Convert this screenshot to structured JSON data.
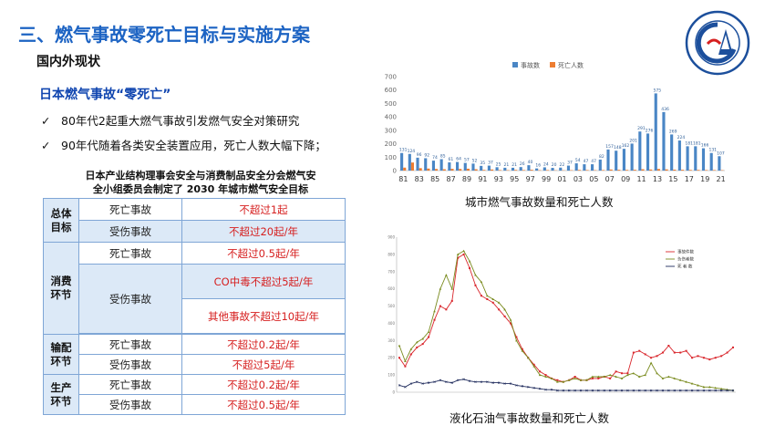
{
  "header": {
    "title": "三、燃气事故零死亡目标与实施方案",
    "subtitle": "国内外现状"
  },
  "section": {
    "heading": "日本燃气事故“零死亡”",
    "bullets": [
      "80年代2起重大燃气事故引发燃气安全对策研究",
      "90年代随着各类安全装置应用，死亡人数大幅下降；"
    ]
  },
  "table": {
    "caption_line1": "日本产业结构理事会安全与消费制品安全分会燃气安",
    "caption_line2": "全小组委员会制定了 2030 年城市燃气安全目标",
    "rows": {
      "total_cat": "总体目标",
      "consume_cat": "消费环节",
      "transport_cat": "输配环节",
      "produce_cat": "生产环节",
      "death": "死亡事故",
      "injury": "受伤事故",
      "total_death_limit": "不超过1起",
      "total_injury_limit": "不超过20起/年",
      "consume_death_limit": "不超过0.5起/年",
      "consume_co_limit": "CO中毒不超过5起/年",
      "consume_other_limit": "其他事故不超过10起/年",
      "transport_death_limit": "不超过0.2起/年",
      "transport_injury_limit": "不超过5起/年",
      "produce_death_limit": "不超过0.2起/年",
      "produce_injury_limit": "不超过0.5起/年"
    }
  },
  "logo": {
    "ring_text": "CHINA GAS ASSOCIATION",
    "top_text": "中国城市燃气协会",
    "color": "#1c4f9c"
  },
  "chart_data": [
    {
      "type": "bar",
      "caption": "城市燃气事故数量和死亡人数",
      "legend": [
        "事故数",
        "死亡人数"
      ],
      "legend_position": "top",
      "ylim": [
        0,
        700
      ],
      "yticks": [
        "0",
        "100",
        "200",
        "300",
        "400",
        "500",
        "600",
        "700"
      ],
      "xtick_labels": [
        "81",
        "83",
        "85",
        "87",
        "89",
        "91",
        "93",
        "95",
        "97",
        "99",
        "01",
        "03",
        "05",
        "07",
        "09",
        "11",
        "13",
        "15",
        "17",
        "19",
        "21"
      ],
      "categories": [
        "81",
        "82",
        "83",
        "84",
        "85",
        "86",
        "87",
        "88",
        "89",
        "90",
        "91",
        "92",
        "93",
        "94",
        "95",
        "96",
        "97",
        "98",
        "99",
        "00",
        "01",
        "02",
        "03",
        "04",
        "05",
        "06",
        "07",
        "08",
        "09",
        "10",
        "11",
        "12",
        "13",
        "14",
        "15",
        "16",
        "17",
        "18",
        "19",
        "20",
        "21"
      ],
      "colors": {
        "accidents": "#4a86c5",
        "deaths": "#ed7d31"
      },
      "series": [
        {
          "name": "事故数",
          "values": [
            131,
            124,
            96,
            92,
            74,
            85,
            61,
            64,
            57,
            52,
            35,
            37,
            25,
            21,
            21,
            26,
            40,
            16,
            24,
            20,
            22,
            37,
            54,
            47,
            47,
            82,
            157,
            148,
            162,
            201,
            291,
            276,
            575,
            436,
            269,
            224,
            181,
            181,
            166,
            131,
            107
          ]
        },
        {
          "name": "死亡人数",
          "values": [
            22,
            60,
            18,
            15,
            12,
            10,
            13,
            12,
            14,
            10,
            5,
            8,
            4,
            3,
            5,
            4,
            6,
            3,
            4,
            2,
            2,
            3,
            5,
            4,
            3,
            4,
            8,
            6,
            5,
            6,
            10,
            8,
            12,
            9,
            7,
            6,
            5,
            5,
            4,
            4,
            3
          ]
        }
      ],
      "data_labels": [
        "131",
        "124",
        "96",
        "92",
        "74",
        "85",
        "61",
        "64",
        "57",
        "52",
        "35",
        "37",
        "25",
        "21",
        "21",
        "26",
        "40",
        "16",
        "24",
        "20",
        "22",
        "37",
        "54",
        "47",
        "47",
        "82",
        "157",
        "148",
        "162",
        "201",
        "291",
        "276",
        "575",
        "436",
        "269",
        "224",
        "181",
        "181",
        "166",
        "131",
        "107"
      ]
    },
    {
      "type": "line",
      "caption": "液化石油气事故数量和死亡人数",
      "ylim": [
        0,
        900
      ],
      "yticks": [
        "0",
        "100",
        "200",
        "300",
        "400",
        "500",
        "600",
        "700",
        "800",
        "900"
      ],
      "legend_position": "top-right",
      "colors": {
        "accidents": "#d9262c",
        "injured": "#7a8b1f",
        "deaths": "#1f2b5c"
      },
      "series": [
        {
          "name": "事故件数",
          "values": [
            200,
            150,
            220,
            260,
            280,
            320,
            420,
            500,
            480,
            530,
            780,
            800,
            720,
            620,
            560,
            540,
            520,
            480,
            440,
            400,
            320,
            250,
            200,
            160,
            120,
            100,
            80,
            70,
            60,
            70,
            90,
            70,
            70,
            80,
            80,
            90,
            80,
            120,
            110,
            110,
            230,
            240,
            220,
            200,
            210,
            230,
            270,
            230,
            230,
            240,
            200,
            210,
            200,
            190,
            200,
            210,
            230,
            260
          ]
        },
        {
          "name": "负伤者数",
          "values": [
            270,
            180,
            250,
            290,
            310,
            350,
            470,
            600,
            680,
            600,
            800,
            820,
            760,
            680,
            640,
            560,
            540,
            520,
            480,
            420,
            300,
            240,
            200,
            150,
            100,
            90,
            80,
            60,
            60,
            70,
            80,
            70,
            70,
            90,
            90,
            90,
            100,
            90,
            80,
            100,
            110,
            90,
            100,
            170,
            110,
            80,
            90,
            80,
            70,
            60,
            50,
            40,
            30,
            30,
            25,
            20,
            15,
            10
          ]
        },
        {
          "name": "死 者 数",
          "values": [
            40,
            30,
            50,
            60,
            50,
            55,
            60,
            70,
            60,
            55,
            70,
            75,
            65,
            60,
            60,
            60,
            55,
            55,
            50,
            50,
            40,
            35,
            30,
            25,
            20,
            15,
            15,
            10,
            10,
            10,
            10,
            10,
            10,
            10,
            10,
            10,
            10,
            10,
            10,
            10,
            10,
            10,
            10,
            10,
            10,
            10,
            10,
            10,
            10,
            10,
            10,
            10,
            10,
            10,
            10,
            10,
            10,
            10
          ]
        }
      ]
    }
  ]
}
